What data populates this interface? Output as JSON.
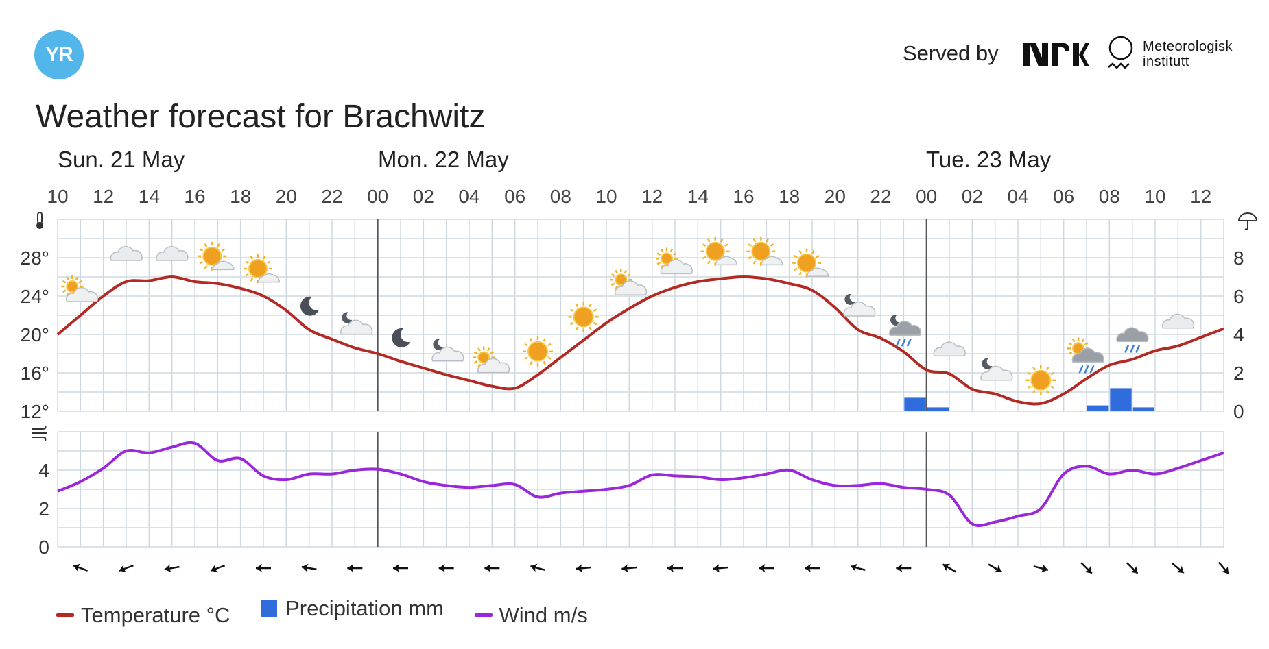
{
  "header": {
    "logo_text": "YR",
    "served_by": "Served by",
    "nrk_logo": "NRK",
    "met_line1": "Meteorologisk",
    "met_line2": "institutt"
  },
  "title": "Weather forecast for Brachwitz",
  "colors": {
    "temperature": "#b22a23",
    "precipitation": "#2f6ddc",
    "wind": "#9a27d9",
    "grid": "#cfd8e0",
    "logo": "#53b6ea"
  },
  "legend": {
    "temperature": "Temperature °C",
    "precipitation": "Precipitation mm",
    "wind": "Wind m/s"
  },
  "chart_data": {
    "type": "line",
    "days": [
      {
        "label": "Sun. 21 May",
        "start_hour": 10
      },
      {
        "label": "Mon. 22 May",
        "start_hour": 24
      },
      {
        "label": "Tue. 23 May",
        "start_hour": 48
      }
    ],
    "x_tick_labels": [
      "10",
      "12",
      "14",
      "16",
      "18",
      "20",
      "22",
      "00",
      "02",
      "04",
      "06",
      "08",
      "10",
      "12",
      "14",
      "16",
      "18",
      "20",
      "22",
      "00",
      "02",
      "04",
      "06",
      "08",
      "10",
      "12"
    ],
    "x_range_hours": [
      10,
      61
    ],
    "temperature_axis": {
      "ticks": [
        "12°",
        "16°",
        "20°",
        "24°",
        "28°"
      ],
      "range": [
        12,
        32
      ],
      "icon": "thermometer-icon"
    },
    "precipitation_axis": {
      "ticks": [
        "0",
        "2",
        "4",
        "6",
        "8"
      ],
      "range": [
        0,
        10
      ],
      "icon": "umbrella-icon"
    },
    "wind_axis": {
      "ticks": [
        "0",
        "2",
        "4"
      ],
      "range": [
        0,
        6
      ],
      "icon": "wind-icon"
    },
    "grid": true,
    "series": [
      {
        "name": "Temperature °C",
        "unit": "°C",
        "points": [
          [
            10,
            20
          ],
          [
            11,
            22
          ],
          [
            12,
            24
          ],
          [
            13,
            25.5
          ],
          [
            14,
            25.6
          ],
          [
            15,
            26
          ],
          [
            16,
            25.5
          ],
          [
            17,
            25.3
          ],
          [
            18,
            24.8
          ],
          [
            19,
            24
          ],
          [
            20,
            22.5
          ],
          [
            21,
            20.5
          ],
          [
            22,
            19.5
          ],
          [
            23,
            18.6
          ],
          [
            24,
            18
          ],
          [
            25,
            17.2
          ],
          [
            26,
            16.5
          ],
          [
            27,
            15.8
          ],
          [
            28,
            15.2
          ],
          [
            29,
            14.6
          ],
          [
            30,
            14.4
          ],
          [
            31,
            15.8
          ],
          [
            32,
            17.6
          ],
          [
            33,
            19.4
          ],
          [
            34,
            21.2
          ],
          [
            35,
            22.7
          ],
          [
            36,
            24
          ],
          [
            37,
            24.9
          ],
          [
            38,
            25.5
          ],
          [
            39,
            25.8
          ],
          [
            40,
            26
          ],
          [
            41,
            25.8
          ],
          [
            42,
            25.3
          ],
          [
            43,
            24.6
          ],
          [
            44,
            22.8
          ],
          [
            45,
            20.5
          ],
          [
            46,
            19.6
          ],
          [
            47,
            18.2
          ],
          [
            48,
            16.3
          ],
          [
            49,
            15.9
          ],
          [
            50,
            14.3
          ],
          [
            51,
            13.8
          ],
          [
            52,
            13
          ],
          [
            53,
            12.8
          ],
          [
            54,
            13.8
          ],
          [
            55,
            15.4
          ],
          [
            56,
            16.8
          ],
          [
            57,
            17.4
          ],
          [
            58,
            18.3
          ],
          [
            59,
            18.8
          ],
          [
            60,
            19.7
          ],
          [
            61,
            20.6
          ]
        ]
      },
      {
        "name": "Precipitation mm",
        "unit": "mm",
        "bars": [
          [
            47.5,
            0.7
          ],
          [
            48.5,
            0.2
          ],
          [
            55.5,
            0.3
          ],
          [
            56.5,
            1.2
          ],
          [
            57.5,
            0.2
          ]
        ]
      },
      {
        "name": "Wind m/s",
        "unit": "m/s",
        "points": [
          [
            10,
            2.9
          ],
          [
            11,
            3.4
          ],
          [
            12,
            4.1
          ],
          [
            13,
            5
          ],
          [
            14,
            4.9
          ],
          [
            15,
            5.2
          ],
          [
            16,
            5.4
          ],
          [
            17,
            4.5
          ],
          [
            18,
            4.6
          ],
          [
            19,
            3.7
          ],
          [
            20,
            3.5
          ],
          [
            21,
            3.8
          ],
          [
            22,
            3.8
          ],
          [
            23,
            4
          ],
          [
            24,
            4.05
          ],
          [
            25,
            3.8
          ],
          [
            26,
            3.4
          ],
          [
            27,
            3.2
          ],
          [
            28,
            3.1
          ],
          [
            29,
            3.2
          ],
          [
            30,
            3.25
          ],
          [
            31,
            2.6
          ],
          [
            32,
            2.8
          ],
          [
            33,
            2.9
          ],
          [
            34,
            3
          ],
          [
            35,
            3.2
          ],
          [
            36,
            3.75
          ],
          [
            37,
            3.7
          ],
          [
            38,
            3.65
          ],
          [
            39,
            3.5
          ],
          [
            40,
            3.6
          ],
          [
            41,
            3.8
          ],
          [
            42,
            4
          ],
          [
            43,
            3.5
          ],
          [
            44,
            3.2
          ],
          [
            45,
            3.2
          ],
          [
            46,
            3.3
          ],
          [
            47,
            3.1
          ],
          [
            48,
            3
          ],
          [
            49,
            2.7
          ],
          [
            50,
            1.2
          ],
          [
            51,
            1.3
          ],
          [
            52,
            1.6
          ],
          [
            53,
            2
          ],
          [
            54,
            3.8
          ],
          [
            55,
            4.2
          ],
          [
            56,
            3.8
          ],
          [
            57,
            4
          ],
          [
            58,
            3.8
          ],
          [
            59,
            4.1
          ],
          [
            60,
            4.5
          ],
          [
            61,
            4.9
          ]
        ]
      }
    ],
    "weather_symbols": [
      {
        "hour": 11,
        "icon": "partly-cloudy-day-icon"
      },
      {
        "hour": 13,
        "icon": "cloudy-icon"
      },
      {
        "hour": 15,
        "icon": "cloudy-icon"
      },
      {
        "hour": 17,
        "icon": "fair-day-icon"
      },
      {
        "hour": 19,
        "icon": "fair-day-icon"
      },
      {
        "hour": 21,
        "icon": "clear-night-icon"
      },
      {
        "hour": 23,
        "icon": "partly-cloudy-night-icon"
      },
      {
        "hour": 25,
        "icon": "clear-night-icon"
      },
      {
        "hour": 27,
        "icon": "partly-cloudy-night-icon"
      },
      {
        "hour": 29,
        "icon": "partly-cloudy-day-icon"
      },
      {
        "hour": 31,
        "icon": "clear-day-icon"
      },
      {
        "hour": 33,
        "icon": "clear-day-icon"
      },
      {
        "hour": 35,
        "icon": "partly-cloudy-day-icon"
      },
      {
        "hour": 37,
        "icon": "partly-cloudy-day-icon"
      },
      {
        "hour": 39,
        "icon": "fair-day-icon"
      },
      {
        "hour": 41,
        "icon": "fair-day-icon"
      },
      {
        "hour": 43,
        "icon": "fair-day-icon"
      },
      {
        "hour": 45,
        "icon": "partly-cloudy-night-icon"
      },
      {
        "hour": 47,
        "icon": "rain-showers-night-icon"
      },
      {
        "hour": 49,
        "icon": "cloudy-icon"
      },
      {
        "hour": 51,
        "icon": "partly-cloudy-night-icon"
      },
      {
        "hour": 53,
        "icon": "clear-day-icon"
      },
      {
        "hour": 55,
        "icon": "rain-showers-day-icon"
      },
      {
        "hour": 57,
        "icon": "light-rain-icon"
      },
      {
        "hour": 59,
        "icon": "cloudy-icon"
      }
    ],
    "wind_directions": [
      {
        "hour": 11,
        "arrow_deg": 200
      },
      {
        "hour": 13,
        "arrow_deg": 160
      },
      {
        "hour": 15,
        "arrow_deg": 170
      },
      {
        "hour": 17,
        "arrow_deg": 160
      },
      {
        "hour": 19,
        "arrow_deg": 180
      },
      {
        "hour": 21,
        "arrow_deg": 190
      },
      {
        "hour": 23,
        "arrow_deg": 180
      },
      {
        "hour": 25,
        "arrow_deg": 180
      },
      {
        "hour": 27,
        "arrow_deg": 180
      },
      {
        "hour": 29,
        "arrow_deg": 180
      },
      {
        "hour": 31,
        "arrow_deg": 195
      },
      {
        "hour": 33,
        "arrow_deg": 175
      },
      {
        "hour": 35,
        "arrow_deg": 175
      },
      {
        "hour": 37,
        "arrow_deg": 180
      },
      {
        "hour": 39,
        "arrow_deg": 175
      },
      {
        "hour": 41,
        "arrow_deg": 180
      },
      {
        "hour": 43,
        "arrow_deg": 180
      },
      {
        "hour": 45,
        "arrow_deg": 195
      },
      {
        "hour": 47,
        "arrow_deg": 180
      },
      {
        "hour": 49,
        "arrow_deg": 210
      },
      {
        "hour": 51,
        "arrow_deg": 30
      },
      {
        "hour": 53,
        "arrow_deg": 15
      },
      {
        "hour": 55,
        "arrow_deg": 45
      },
      {
        "hour": 57,
        "arrow_deg": 45
      },
      {
        "hour": 59,
        "arrow_deg": 40
      },
      {
        "hour": 61,
        "arrow_deg": 50
      }
    ]
  }
}
